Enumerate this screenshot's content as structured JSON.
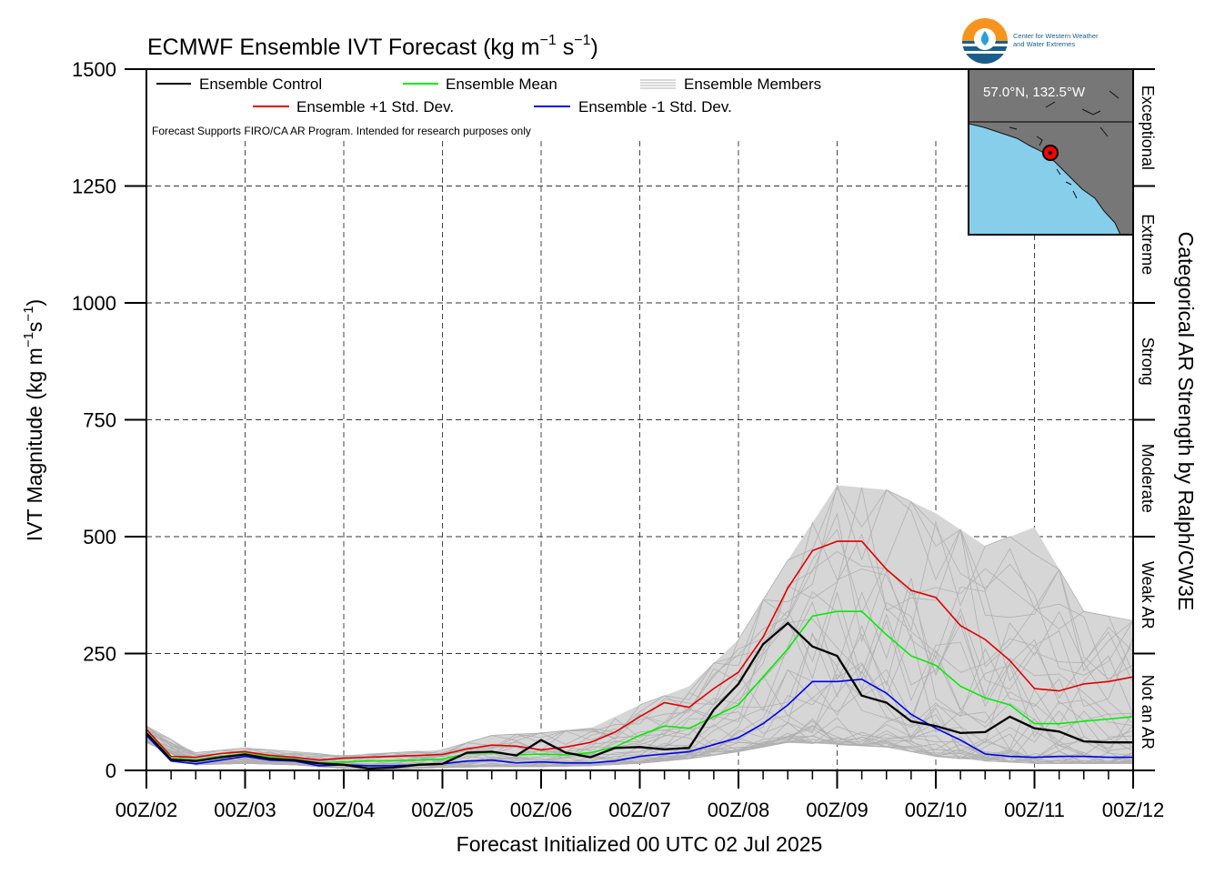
{
  "chart_data": {
    "type": "line",
    "title_main": "ECMWF Ensemble IVT Forecast (kg m",
    "title_sup1": "−1",
    "title_mid": " s",
    "title_sup2": "−1",
    "title_end": ")",
    "ylabel_main": "IVT Magnitude (kg m",
    "ylabel_sup1": "−1",
    "ylabel_mid": "s",
    "ylabel_sup2": "−1",
    "ylabel_end": ")",
    "xlabel": "Forecast Initialized 00 UTC 02 Jul 2025",
    "right_axis_label": "Categorical AR Strength by Ralph/CW3E",
    "disclaimer": "Forecast Supports FIRO/CA AR Program. Intended for research purposes only",
    "ylim": [
      0,
      1500
    ],
    "y_ticks": [
      0,
      250,
      500,
      750,
      1000,
      1250,
      1500
    ],
    "y_tick_labels": [
      "0",
      "250",
      "500",
      "750",
      "1000",
      "1250",
      "1500"
    ],
    "x_range_days": [
      2,
      12
    ],
    "x_tick_days": [
      2,
      3,
      4,
      5,
      6,
      7,
      8,
      9,
      10,
      11,
      12
    ],
    "x_tick_labels": [
      "00Z/02",
      "00Z/03",
      "00Z/04",
      "00Z/05",
      "00Z/06",
      "00Z/07",
      "00Z/08",
      "00Z/09",
      "00Z/10",
      "00Z/11",
      "00Z/12"
    ],
    "grid": true,
    "legend": [
      {
        "label": "Ensemble Control",
        "color": "#000000"
      },
      {
        "label": "Ensemble Mean",
        "color": "#00ee00"
      },
      {
        "label": "Ensemble Members",
        "color": "#b0b0b0"
      },
      {
        "label": "Ensemble +1 Std. Dev.",
        "color": "#e00000"
      },
      {
        "label": "Ensemble -1 Std. Dev.",
        "color": "#0000ee"
      }
    ],
    "categories": [
      {
        "label": "Not an AR",
        "from": 0,
        "to": 250
      },
      {
        "label": "Weak AR",
        "from": 250,
        "to": 500
      },
      {
        "label": "Moderate",
        "from": 500,
        "to": 750
      },
      {
        "label": "Strong",
        "from": 750,
        "to": 1000
      },
      {
        "label": "Extreme",
        "from": 1000,
        "to": 1250
      },
      {
        "label": "Exceptional",
        "from": 1250,
        "to": 1500
      }
    ],
    "series": [
      {
        "name": "Ensemble Control",
        "color": "#000000",
        "x": [
          2.0,
          2.25,
          2.5,
          2.75,
          3.0,
          3.25,
          3.5,
          3.75,
          4.0,
          4.25,
          4.5,
          4.75,
          5.0,
          5.25,
          5.5,
          5.75,
          6.0,
          6.25,
          6.5,
          6.75,
          7.0,
          7.25,
          7.5,
          7.75,
          8.0,
          8.25,
          8.5,
          8.75,
          9.0,
          9.25,
          9.5,
          9.75,
          10.0,
          10.25,
          10.5,
          10.75,
          11.0,
          11.25,
          11.5,
          11.75,
          12.0
        ],
        "y": [
          80,
          23,
          20,
          28,
          34,
          25,
          22,
          15,
          12,
          4,
          6,
          12,
          14,
          38,
          40,
          32,
          65,
          38,
          28,
          48,
          50,
          45,
          48,
          130,
          185,
          270,
          315,
          265,
          245,
          160,
          145,
          105,
          95,
          80,
          82,
          115,
          90,
          83,
          62,
          60,
          60
        ]
      },
      {
        "name": "Ensemble Mean",
        "color": "#00ee00",
        "x": [
          2.0,
          2.25,
          2.5,
          2.75,
          3.0,
          3.25,
          3.5,
          3.75,
          4.0,
          4.25,
          4.5,
          4.75,
          5.0,
          5.25,
          5.5,
          5.75,
          6.0,
          6.25,
          6.5,
          6.75,
          7.0,
          7.25,
          7.5,
          7.75,
          8.0,
          8.25,
          8.5,
          8.75,
          9.0,
          9.25,
          9.5,
          9.75,
          10.0,
          10.25,
          10.5,
          10.75,
          11.0,
          11.25,
          11.5,
          11.75,
          12.0
        ],
        "y": [
          82,
          26,
          22,
          30,
          36,
          28,
          24,
          16,
          18,
          20,
          21,
          22,
          24,
          36,
          38,
          33,
          35,
          33,
          38,
          50,
          75,
          95,
          90,
          115,
          140,
          200,
          260,
          330,
          340,
          340,
          290,
          245,
          225,
          180,
          155,
          140,
          100,
          100,
          105,
          110,
          115
        ]
      },
      {
        "name": "Ensemble +1 Std. Dev.",
        "color": "#e00000",
        "x": [
          2.0,
          2.25,
          2.5,
          2.75,
          3.0,
          3.25,
          3.5,
          3.75,
          4.0,
          4.25,
          4.5,
          4.75,
          5.0,
          5.25,
          5.5,
          5.75,
          6.0,
          6.25,
          6.5,
          6.75,
          7.0,
          7.25,
          7.5,
          7.75,
          8.0,
          8.25,
          8.5,
          8.75,
          9.0,
          9.25,
          9.5,
          9.75,
          10.0,
          10.25,
          10.5,
          10.75,
          11.0,
          11.25,
          11.5,
          11.75,
          12.0
        ],
        "y": [
          88,
          30,
          28,
          36,
          40,
          32,
          28,
          22,
          26,
          28,
          30,
          32,
          34,
          46,
          54,
          52,
          44,
          50,
          60,
          82,
          115,
          145,
          135,
          175,
          210,
          285,
          390,
          470,
          490,
          490,
          430,
          385,
          370,
          310,
          280,
          235,
          175,
          170,
          185,
          190,
          200
        ]
      },
      {
        "name": "Ensemble -1 Std. Dev.",
        "color": "#0000ee",
        "x": [
          2.0,
          2.25,
          2.5,
          2.75,
          3.0,
          3.25,
          3.5,
          3.75,
          4.0,
          4.25,
          4.5,
          4.75,
          5.0,
          5.25,
          5.5,
          5.75,
          6.0,
          6.25,
          6.5,
          6.75,
          7.0,
          7.25,
          7.5,
          7.75,
          8.0,
          8.25,
          8.5,
          8.75,
          9.0,
          9.25,
          9.5,
          9.75,
          10.0,
          10.25,
          10.5,
          10.75,
          11.0,
          11.25,
          11.5,
          11.75,
          12.0
        ],
        "y": [
          75,
          20,
          14,
          22,
          30,
          22,
          20,
          10,
          12,
          10,
          10,
          12,
          14,
          20,
          22,
          16,
          18,
          16,
          16,
          20,
          30,
          35,
          40,
          55,
          70,
          100,
          140,
          190,
          190,
          195,
          165,
          120,
          90,
          65,
          35,
          30,
          28,
          30,
          30,
          28,
          28
        ]
      }
    ],
    "ensemble_members_envelope": {
      "x": [
        2.0,
        2.5,
        3.0,
        3.5,
        4.0,
        4.5,
        5.0,
        5.5,
        6.0,
        6.5,
        7.0,
        7.5,
        8.0,
        8.5,
        9.0,
        9.5,
        10.0,
        10.5,
        11.0,
        11.5,
        12.0
      ],
      "upper": [
        95,
        38,
        48,
        40,
        32,
        38,
        44,
        75,
        80,
        90,
        140,
        180,
        280,
        450,
        610,
        600,
        550,
        480,
        520,
        340,
        320
      ],
      "lower": [
        60,
        12,
        15,
        12,
        4,
        2,
        6,
        8,
        8,
        10,
        15,
        25,
        40,
        60,
        55,
        50,
        30,
        20,
        15,
        15,
        15
      ]
    }
  },
  "logo": {
    "line1": "Center for Western Weather",
    "line2": "and Water Extremes"
  },
  "inset_map": {
    "coords": "57.0°N, 132.5°W",
    "land_color": "#777777",
    "water_color": "#87ceeb"
  }
}
